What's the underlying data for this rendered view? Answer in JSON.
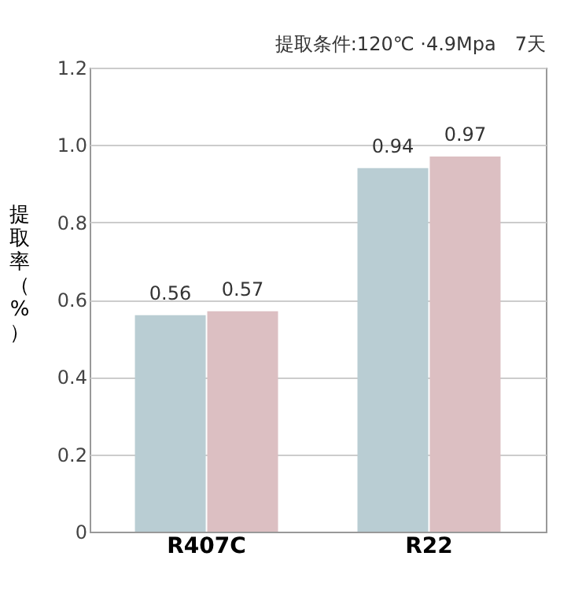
{
  "chart_data": {
    "type": "bar",
    "categories": [
      "R407C",
      "R22"
    ],
    "series": [
      {
        "color": "#b9cdd3",
        "values": [
          0.56,
          0.94
        ]
      },
      {
        "color": "#dcbfc2",
        "values": [
          0.57,
          0.97
        ]
      }
    ],
    "ylabel": "提取率（%）",
    "annotations": [
      "提取条件:120℃ ·4.9Mpa　7天"
    ],
    "ylim": [
      0,
      1.2
    ],
    "yticks": [
      0,
      0.2,
      0.4,
      0.6,
      0.8,
      {
        "value": 1,
        "label": "1.0"
      },
      1.2
    ],
    "grid": "y",
    "data_labels": true
  }
}
